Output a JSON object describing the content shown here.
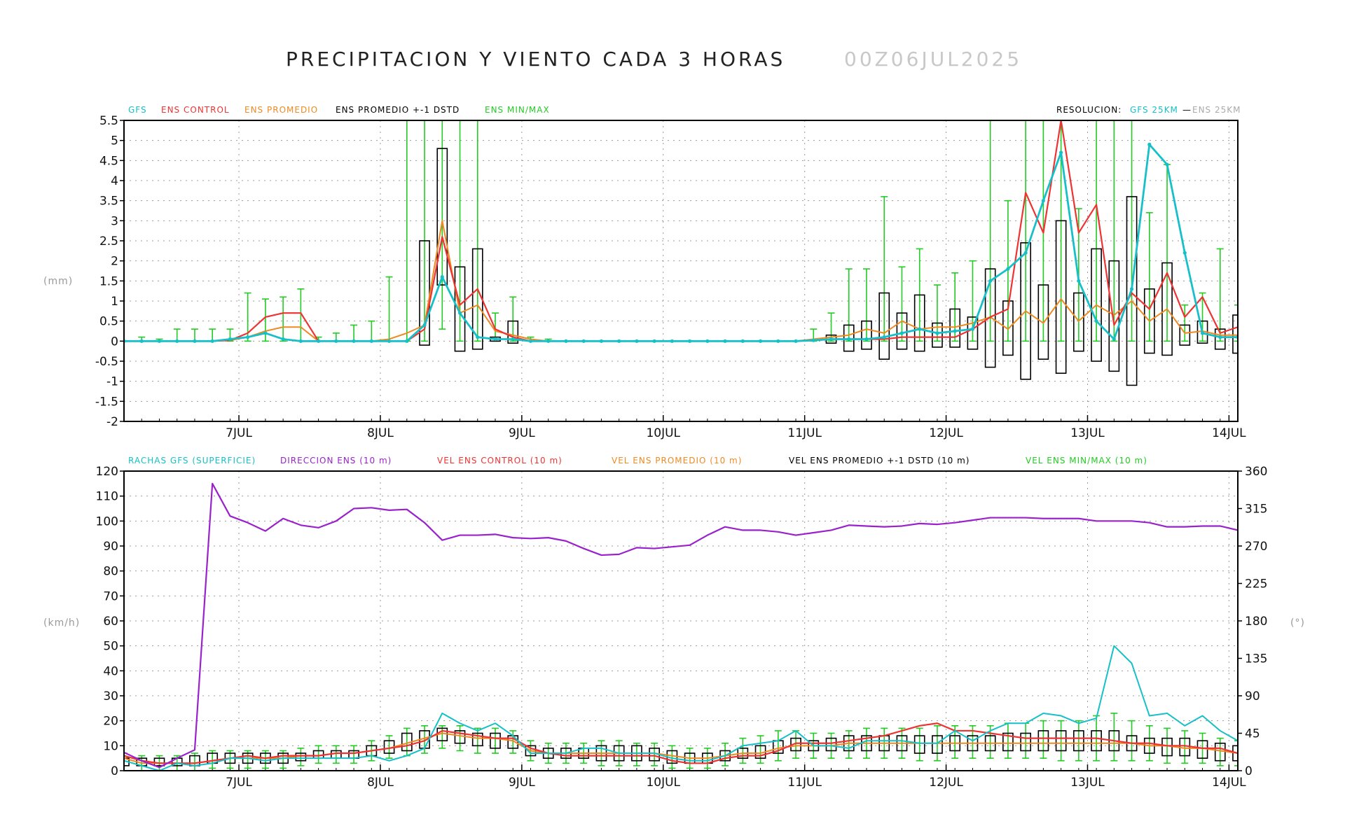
{
  "title": "PRECIPITACION Y VIENTO CADA 3 HORAS",
  "run_date": "00Z06JUL2025",
  "colors": {
    "gfs": "#17c0c8",
    "control": "#ee3333",
    "mean": "#ee8a22",
    "std": "#000000",
    "minmax": "#22cc22",
    "dir": "#9922cc",
    "ens_res": "#aaaaaa"
  },
  "precip_legend": {
    "gfs": "GFS",
    "control": "ENS CONTROL",
    "mean": "ENS PROMEDIO",
    "std": "ENS PROMEDIO +-1 DSTD",
    "minmax": "ENS MIN/MAX",
    "res_label": "RESOLUCION:",
    "res_gfs": "GFS 25KM",
    "res_sep": "—",
    "res_ens": "ENS 25KM"
  },
  "wind_legend": {
    "gust": "RACHAS GFS (SUPERFICIE)",
    "dir": "DIRECCION ENS (10 m)",
    "control": "VEL ENS CONTROL (10 m)",
    "mean": "VEL ENS PROMEDIO (10 m)",
    "std": "VEL ENS PROMEDIO +-1 DSTD (10 m)",
    "minmax": "VEL ENS MIN/MAX (10 m)"
  },
  "chart_data": [
    {
      "type": "line",
      "name": "precipitation",
      "ylabel": "(mm)",
      "ylim": [
        -2,
        5.5
      ],
      "yticks": [
        -2,
        -1.5,
        -1,
        -0.5,
        0,
        0.5,
        1,
        1.5,
        2,
        2.5,
        3,
        3.5,
        4,
        4.5,
        5,
        5.5
      ],
      "xlim": [
        0,
        63
      ],
      "day_ticks": [
        {
          "x": 6.5,
          "label": "7JUL"
        },
        {
          "x": 14.5,
          "label": "8JUL"
        },
        {
          "x": 22.5,
          "label": "9JUL"
        },
        {
          "x": 30.5,
          "label": "10JUL"
        },
        {
          "x": 38.5,
          "label": "11JUL"
        },
        {
          "x": 46.5,
          "label": "12JUL"
        },
        {
          "x": 54.5,
          "label": "13JUL"
        },
        {
          "x": 62.5,
          "label": "14JUL"
        }
      ],
      "gfs": [
        0,
        0,
        0,
        0,
        0,
        0,
        0.05,
        0.1,
        0.2,
        0.05,
        0,
        0,
        0,
        0,
        0,
        0,
        0,
        0.4,
        1.6,
        0.7,
        0.1,
        0.05,
        0.05,
        0,
        0,
        0,
        0,
        0,
        0,
        0,
        0,
        0,
        0,
        0,
        0,
        0,
        0,
        0,
        0,
        0.02,
        0.05,
        0.05,
        0.05,
        0.1,
        0.2,
        0.3,
        0.2,
        0.25,
        0.3,
        1.5,
        1.8,
        2.2,
        3.5,
        4.7,
        1.5,
        0.5,
        0.05,
        1.3,
        4.9,
        4.4,
        2.2,
        0.2,
        0.1,
        0.1
      ],
      "control": [
        0,
        0,
        0,
        0,
        0,
        0,
        0.02,
        0.2,
        0.6,
        0.7,
        0.7,
        0,
        0,
        0,
        0,
        0,
        0,
        0.3,
        2.6,
        0.9,
        1.3,
        0.3,
        0.1,
        0,
        0,
        0,
        0,
        0,
        0,
        0,
        0,
        0,
        0,
        0,
        0,
        0,
        0,
        0,
        0,
        0.02,
        0.05,
        0.05,
        0.05,
        0.05,
        0.1,
        0.1,
        0.1,
        0.1,
        0.3,
        0.6,
        0.8,
        3.7,
        2.7,
        5.6,
        2.7,
        3.4,
        0.4,
        1.2,
        0.8,
        1.7,
        0.6,
        1.1,
        0.2,
        0.35
      ],
      "mean": [
        0,
        0,
        0,
        0,
        0,
        0,
        0.02,
        0.1,
        0.25,
        0.35,
        0.35,
        0,
        0,
        0,
        0,
        0.05,
        0.2,
        0.4,
        3.0,
        0.7,
        0.9,
        0.25,
        0.15,
        0.05,
        0,
        0,
        0,
        0,
        0,
        0,
        0,
        0,
        0,
        0,
        0,
        0,
        0,
        0,
        0,
        0.05,
        0.1,
        0.15,
        0.3,
        0.2,
        0.5,
        0.3,
        0.35,
        0.35,
        0.45,
        0.6,
        0.3,
        0.75,
        0.45,
        1.05,
        0.5,
        0.9,
        0.65,
        1.0,
        0.5,
        0.8,
        0.2,
        0.25,
        0.15,
        0.15
      ],
      "std_low": [
        0,
        0,
        0,
        0,
        0,
        0,
        0,
        0,
        0,
        0,
        0,
        0,
        0,
        0,
        0,
        0,
        0,
        -0.1,
        1.4,
        -0.25,
        -0.2,
        0,
        -0.05,
        0,
        0,
        0,
        0,
        0,
        0,
        0,
        0,
        0,
        0,
        0,
        0,
        0,
        0,
        0,
        0,
        0,
        -0.05,
        -0.25,
        -0.2,
        -0.45,
        -0.2,
        -0.25,
        -0.15,
        -0.15,
        -0.2,
        -0.65,
        -0.35,
        -0.95,
        -0.45,
        -0.8,
        -0.25,
        -0.5,
        -0.75,
        -1.1,
        -0.3,
        -0.35,
        -0.1,
        -0.05,
        -0.2,
        -0.3
      ],
      "std_high": [
        0,
        0,
        0,
        0,
        0,
        0,
        0,
        0,
        0,
        0,
        0,
        0,
        0,
        0,
        0,
        0,
        0,
        2.5,
        4.8,
        1.85,
        2.3,
        0.1,
        0.5,
        0,
        0,
        0,
        0,
        0,
        0,
        0,
        0,
        0,
        0,
        0,
        0,
        0,
        0,
        0,
        0,
        0,
        0.15,
        0.4,
        0.5,
        1.2,
        0.7,
        1.15,
        0.45,
        0.8,
        0.6,
        1.8,
        1.0,
        2.45,
        1.4,
        3.0,
        1.2,
        2.3,
        2.0,
        3.6,
        1.3,
        1.95,
        0.4,
        0.5,
        0.3,
        0.65
      ],
      "min": [
        0,
        0,
        0,
        0,
        0,
        0,
        0,
        0,
        0,
        0,
        0,
        0,
        0,
        0,
        0,
        0,
        0,
        0,
        0.3,
        0,
        0,
        0,
        0,
        0,
        0,
        0,
        0,
        0,
        0,
        0,
        0,
        0,
        0,
        0,
        0,
        0,
        0,
        0,
        0,
        0,
        0,
        0,
        0,
        0,
        0,
        0,
        0,
        0,
        0,
        0,
        0,
        0,
        0,
        0,
        0,
        0,
        0,
        0,
        0,
        0,
        0,
        0,
        0,
        0
      ],
      "max": [
        0,
        0.1,
        0.05,
        0.3,
        0.3,
        0.3,
        0.3,
        1.2,
        1.05,
        1.1,
        1.3,
        0.1,
        0.2,
        0.4,
        0.5,
        1.6,
        6,
        6,
        6,
        6,
        6,
        0.7,
        1.1,
        0.1,
        0.05,
        0,
        0,
        0,
        0,
        0,
        0,
        0,
        0,
        0,
        0,
        0,
        0,
        0,
        0,
        0.3,
        0.7,
        1.8,
        1.8,
        3.6,
        1.85,
        2.3,
        1.4,
        1.7,
        2.0,
        6,
        3.5,
        6,
        6,
        6,
        3.3,
        6,
        6,
        6,
        3.2,
        4.4,
        0.9,
        1.2,
        2.3,
        0.9
      ]
    },
    {
      "type": "line",
      "name": "wind",
      "ylabel": "(km/h)",
      "y2label": "(°)",
      "ylim": [
        0,
        120
      ],
      "yticks": [
        0,
        10,
        20,
        30,
        40,
        50,
        60,
        70,
        80,
        90,
        100,
        110,
        120
      ],
      "y2lim": [
        0,
        360
      ],
      "y2ticks": [
        0,
        45,
        90,
        135,
        180,
        225,
        270,
        315,
        360
      ],
      "xlim": [
        0,
        63
      ],
      "day_ticks": [
        {
          "x": 6.5,
          "label": "7JUL"
        },
        {
          "x": 14.5,
          "label": "8JUL"
        },
        {
          "x": 22.5,
          "label": "9JUL"
        },
        {
          "x": 30.5,
          "label": "10JUL"
        },
        {
          "x": 38.5,
          "label": "11JUL"
        },
        {
          "x": 46.5,
          "label": "12JUL"
        },
        {
          "x": 54.5,
          "label": "13JUL"
        },
        {
          "x": 62.5,
          "label": "14JUL"
        }
      ],
      "gust": [
        4,
        2,
        0,
        3,
        2,
        3,
        5,
        5,
        4,
        5,
        5,
        5,
        5,
        5,
        6,
        4,
        6,
        9,
        23,
        19,
        16,
        19,
        14,
        7,
        7,
        7,
        9,
        9,
        7,
        7,
        7,
        5,
        4,
        4,
        6,
        10,
        11,
        12,
        16,
        10,
        10,
        9,
        12,
        12,
        12,
        11,
        11,
        16,
        12,
        16,
        19,
        19,
        23,
        22,
        19,
        21,
        50,
        43,
        22,
        23,
        18,
        22,
        16,
        12
      ],
      "dir": [
        22,
        12,
        4,
        15,
        25,
        345,
        306,
        298,
        288,
        303,
        295,
        292,
        300,
        315,
        316,
        313,
        314,
        298,
        277,
        283,
        283,
        284,
        280,
        279,
        280,
        276,
        267,
        259,
        260,
        268,
        267,
        269,
        271,
        283,
        293,
        289,
        289,
        287,
        283,
        286,
        289,
        295,
        294,
        293,
        294,
        297,
        296,
        298,
        301,
        304,
        304,
        304,
        303,
        303,
        303,
        300,
        300,
        300,
        298,
        293,
        293,
        294,
        294,
        289
      ],
      "control": [
        6,
        4,
        3,
        3,
        3,
        4,
        5,
        6,
        5,
        6,
        6,
        6,
        7,
        7,
        8,
        9,
        10,
        12,
        16,
        15,
        14,
        13,
        13,
        9,
        7,
        6,
        6,
        6,
        6,
        6,
        6,
        4,
        3,
        3,
        5,
        6,
        6,
        8,
        11,
        11,
        11,
        12,
        13,
        14,
        16,
        18,
        19,
        16,
        16,
        15,
        14,
        13,
        13,
        13,
        13,
        13,
        12,
        11,
        11,
        10,
        10,
        9,
        9,
        7
      ],
      "mean": [
        5,
        3,
        3,
        3,
        3,
        4,
        5,
        5,
        5,
        5,
        6,
        6,
        7,
        7,
        8,
        9,
        11,
        13,
        15,
        14,
        13,
        13,
        12,
        8,
        7,
        7,
        7,
        7,
        7,
        7,
        7,
        6,
        5,
        5,
        6,
        7,
        7,
        9,
        10,
        10,
        10,
        11,
        11,
        11,
        11,
        11,
        11,
        11,
        11,
        11,
        11,
        11,
        11,
        11,
        11,
        11,
        11,
        11,
        10,
        10,
        9,
        9,
        8,
        7
      ],
      "std_low": [
        2,
        2,
        2,
        2,
        2,
        3,
        3,
        3,
        3,
        3,
        4,
        5,
        5,
        5,
        6,
        7,
        8,
        9,
        12,
        11,
        10,
        9,
        9,
        6,
        5,
        5,
        5,
        4,
        4,
        4,
        4,
        3,
        3,
        3,
        4,
        5,
        5,
        7,
        8,
        8,
        8,
        8,
        8,
        8,
        8,
        7,
        7,
        8,
        8,
        8,
        8,
        8,
        8,
        8,
        8,
        8,
        8,
        8,
        7,
        6,
        6,
        5,
        4,
        4
      ],
      "std_high": [
        5,
        5,
        5,
        5,
        6,
        7,
        7,
        7,
        7,
        7,
        7,
        8,
        8,
        8,
        10,
        12,
        15,
        16,
        17,
        16,
        15,
        15,
        14,
        10,
        9,
        9,
        9,
        10,
        10,
        10,
        9,
        8,
        7,
        7,
        8,
        9,
        10,
        12,
        13,
        12,
        13,
        14,
        14,
        14,
        14,
        14,
        14,
        14,
        14,
        14,
        15,
        15,
        16,
        16,
        16,
        16,
        16,
        14,
        13,
        13,
        13,
        12,
        11,
        10
      ],
      "min": [
        0,
        0,
        0,
        0,
        0,
        1,
        1,
        1,
        1,
        1,
        2,
        3,
        3,
        3,
        4,
        5,
        6,
        7,
        9,
        8,
        7,
        7,
        7,
        4,
        3,
        3,
        3,
        2,
        2,
        2,
        2,
        1,
        1,
        1,
        2,
        3,
        3,
        4,
        5,
        5,
        5,
        5,
        5,
        5,
        5,
        4,
        4,
        5,
        5,
        5,
        5,
        5,
        5,
        4,
        4,
        4,
        4,
        4,
        4,
        3,
        3,
        3,
        2,
        2
      ],
      "max": [
        7,
        6,
        6,
        6,
        7,
        8,
        8,
        8,
        8,
        8,
        9,
        10,
        10,
        10,
        12,
        14,
        17,
        18,
        18,
        18,
        17,
        17,
        16,
        12,
        11,
        11,
        11,
        12,
        12,
        11,
        11,
        10,
        9,
        9,
        11,
        13,
        14,
        16,
        16,
        15,
        15,
        16,
        17,
        17,
        17,
        17,
        18,
        18,
        18,
        18,
        19,
        19,
        20,
        20,
        20,
        22,
        23,
        20,
        18,
        17,
        16,
        15,
        13,
        12
      ]
    }
  ]
}
